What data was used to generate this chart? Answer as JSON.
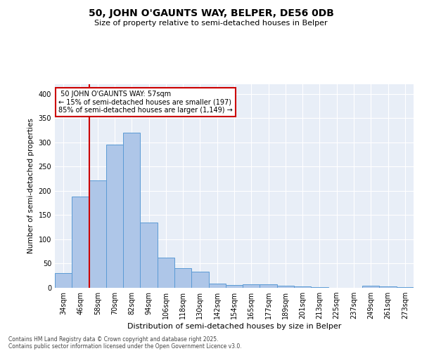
{
  "title": "50, JOHN O'GAUNTS WAY, BELPER, DE56 0DB",
  "subtitle": "Size of property relative to semi-detached houses in Belper",
  "xlabel": "Distribution of semi-detached houses by size in Belper",
  "ylabel": "Number of semi-detached properties",
  "footnote1": "Contains HM Land Registry data © Crown copyright and database right 2025.",
  "footnote2": "Contains public sector information licensed under the Open Government Licence v3.0.",
  "categories": [
    "34sqm",
    "46sqm",
    "58sqm",
    "70sqm",
    "82sqm",
    "94sqm",
    "106sqm",
    "118sqm",
    "130sqm",
    "142sqm",
    "154sqm",
    "165sqm",
    "177sqm",
    "189sqm",
    "201sqm",
    "213sqm",
    "225sqm",
    "237sqm",
    "249sqm",
    "261sqm",
    "273sqm"
  ],
  "values": [
    31,
    188,
    222,
    295,
    320,
    135,
    62,
    40,
    33,
    9,
    6,
    7,
    7,
    5,
    3,
    1,
    0,
    0,
    4,
    3,
    1
  ],
  "bar_color": "#aec6e8",
  "bar_edge_color": "#5b9bd5",
  "bg_color": "#e8eef7",
  "grid_color": "#ffffff",
  "property_label": "50 JOHN O'GAUNTS WAY: 57sqm",
  "smaller_pct": "15%",
  "smaller_n": "197",
  "larger_pct": "85%",
  "larger_n": "1,149",
  "annotation_box_color": "#cc0000",
  "ylim": [
    0,
    420
  ],
  "yticks": [
    0,
    50,
    100,
    150,
    200,
    250,
    300,
    350,
    400
  ]
}
